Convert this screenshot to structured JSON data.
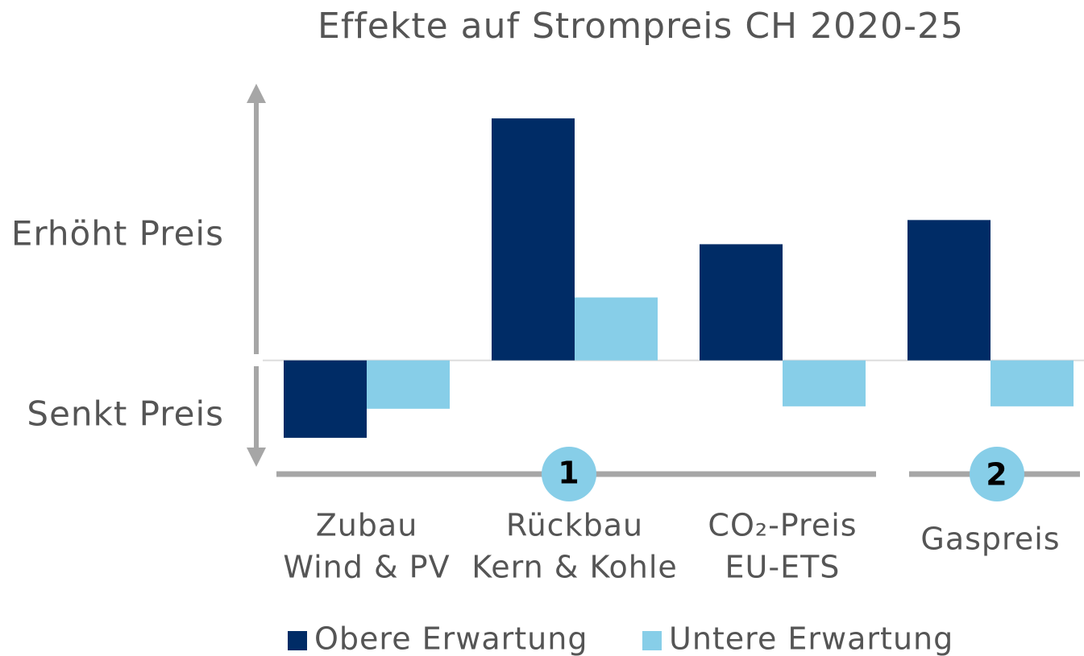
{
  "chart_data": {
    "type": "bar",
    "title": "Effekte auf Strompreis CH 2020-25",
    "annotations": [
      "Erhöht Preis",
      "Senkt Preis"
    ],
    "categories": [
      [
        "Zubau",
        "Wind & PV"
      ],
      [
        "Rückbau",
        "Kern & Kohle"
      ],
      [
        "CO₂-Preis",
        "EU-ETS"
      ],
      [
        "Gaspreis"
      ]
    ],
    "group_labels": [
      "1",
      "2"
    ],
    "series": [
      {
        "name": "Obere Erwartung",
        "color": "#002c66",
        "values": [
          -32,
          100,
          48,
          58
        ]
      },
      {
        "name": "Untere Erwartung",
        "color": "#87cee8",
        "values": [
          -20,
          26,
          -19,
          -19
        ]
      }
    ],
    "ylim": [
      -44,
      114
    ]
  }
}
